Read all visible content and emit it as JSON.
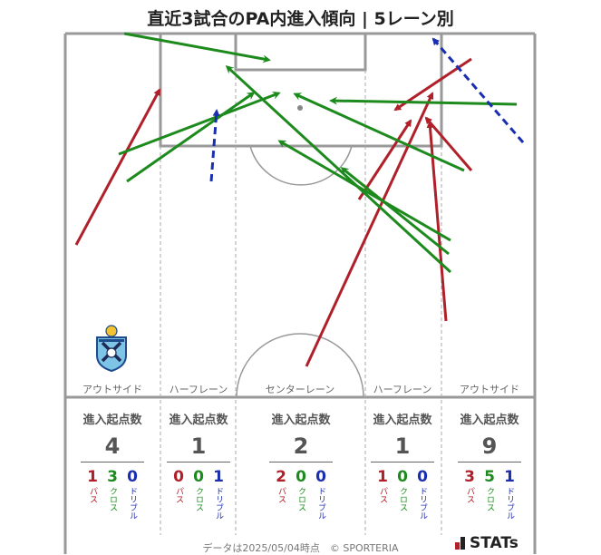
{
  "title": "直近3試合のPA内進入傾向 | 5レーン別",
  "lanes": [
    {
      "name": "アウトサイド",
      "stat_header": "進入起点数",
      "total": "4",
      "pass": "1",
      "cross": "3",
      "dribble": "0"
    },
    {
      "name": "ハーフレーン",
      "stat_header": "進入起点数",
      "total": "1",
      "pass": "0",
      "cross": "0",
      "dribble": "1"
    },
    {
      "name": "センターレーン",
      "stat_header": "進入起点数",
      "total": "2",
      "pass": "2",
      "cross": "0",
      "dribble": "0"
    },
    {
      "name": "ハーフレーン",
      "stat_header": "進入起点数",
      "total": "1",
      "pass": "1",
      "cross": "0",
      "dribble": "0"
    },
    {
      "name": "アウトサイド",
      "stat_header": "進入起点数",
      "total": "9",
      "pass": "3",
      "cross": "5",
      "dribble": "1"
    }
  ],
  "labels": {
    "pass": "パス",
    "cross": "クロス",
    "dribble": "ドリブル"
  },
  "colors": {
    "pass": "#b0202a",
    "cross": "#1d8a1d",
    "dribble": "#1a2eb0"
  },
  "footer": "データは2025/05/04時点　© SPORTERIA",
  "brand": "STATs",
  "crest_icon": "team-crest-icon"
}
